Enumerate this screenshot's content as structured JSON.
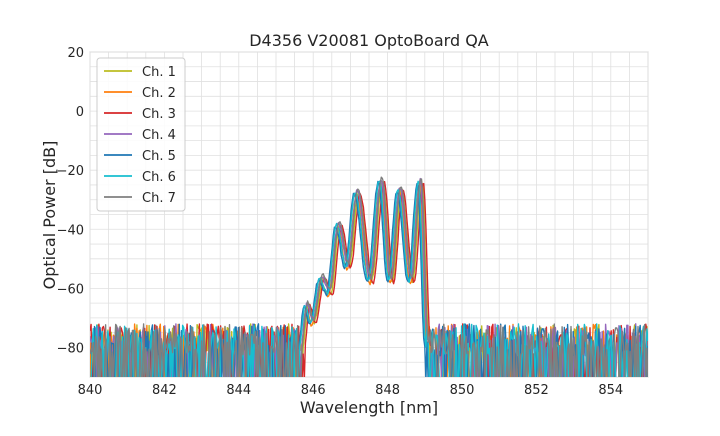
{
  "chart_data": {
    "type": "line",
    "title": "D4356 V20081 OptoBoard QA",
    "xlabel": "Wavelength [nm]",
    "ylabel": "Optical Power [dB]",
    "xlim": [
      840,
      855
    ],
    "ylim": [
      -90,
      20
    ],
    "xticks": [
      840,
      842,
      844,
      846,
      848,
      850,
      852,
      854
    ],
    "yticks": [
      20,
      0,
      -20,
      -40,
      -60,
      -80
    ],
    "grid": true,
    "legend_position": "upper-left",
    "series": [
      {
        "name": "Ch. 1",
        "color": "#bcbd22",
        "shift": 0.12,
        "peak_offset": 0.5
      },
      {
        "name": "Ch. 2",
        "color": "#ff7f0e",
        "shift": 0.06,
        "peak_offset": -0.5
      },
      {
        "name": "Ch. 3",
        "color": "#d62728",
        "shift": 0.16,
        "peak_offset": 0.0
      },
      {
        "name": "Ch. 4",
        "color": "#9467bd",
        "shift": 0.08,
        "peak_offset": 1.0
      },
      {
        "name": "Ch. 5",
        "color": "#1f77b4",
        "shift": 0.0,
        "peak_offset": 0.0
      },
      {
        "name": "Ch. 6",
        "color": "#17becf",
        "shift": 0.03,
        "peak_offset": 0.5
      },
      {
        "name": "Ch. 7",
        "color": "#7f7f7f",
        "shift": 0.1,
        "peak_offset": 1.5
      }
    ],
    "envelope": {
      "noise_floor_db": -90,
      "noise_max_db": -72,
      "band_start_nm": 845.6,
      "band_end_nm": 849.0,
      "peaks": [
        {
          "x": 845.75,
          "y": -66
        },
        {
          "x": 846.15,
          "y": -57
        },
        {
          "x": 846.6,
          "y": -39
        },
        {
          "x": 847.1,
          "y": -28
        },
        {
          "x": 847.75,
          "y": -24
        },
        {
          "x": 848.25,
          "y": -27
        },
        {
          "x": 848.8,
          "y": -24
        }
      ],
      "valleys": [
        {
          "x": 845.9,
          "y": -72
        },
        {
          "x": 846.35,
          "y": -62
        },
        {
          "x": 846.85,
          "y": -53
        },
        {
          "x": 847.45,
          "y": -58
        },
        {
          "x": 848.0,
          "y": -58
        },
        {
          "x": 848.55,
          "y": -58
        }
      ]
    }
  }
}
